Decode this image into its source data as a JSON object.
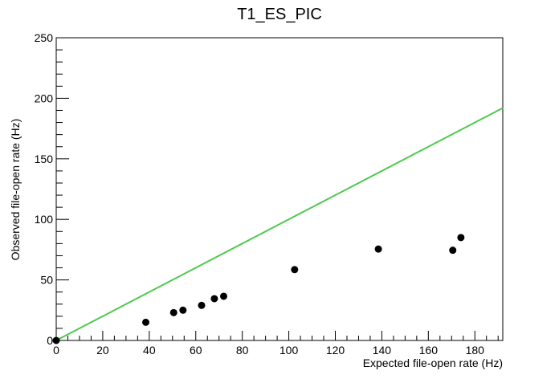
{
  "chart_data": {
    "type": "scatter",
    "title": "T1_ES_PIC",
    "xlabel": "Expected file-open rate (Hz)",
    "ylabel": "Observed file-open rate (Hz)",
    "xlim": [
      0,
      192
    ],
    "ylim": [
      0,
      250
    ],
    "x_ticks": [
      0,
      20,
      40,
      60,
      80,
      100,
      120,
      140,
      160,
      180
    ],
    "y_ticks": [
      0,
      50,
      100,
      150,
      200,
      250
    ],
    "grid": false,
    "series": [
      {
        "marker_color": "#000000",
        "points": [
          {
            "x": 0,
            "y": 0
          },
          {
            "x": 38.5,
            "y": 15
          },
          {
            "x": 50.5,
            "y": 23
          },
          {
            "x": 54.5,
            "y": 25
          },
          {
            "x": 62.5,
            "y": 29
          },
          {
            "x": 68,
            "y": 34.5
          },
          {
            "x": 72,
            "y": 36.5
          },
          {
            "x": 102.5,
            "y": 58.5
          },
          {
            "x": 138.5,
            "y": 75.5
          },
          {
            "x": 170.5,
            "y": 74.5
          },
          {
            "x": 174,
            "y": 85
          }
        ]
      }
    ],
    "reference_line": {
      "color": "#4fc94f",
      "points": [
        {
          "x": 0,
          "y": 0
        },
        {
          "x": 192,
          "y": 192
        }
      ]
    }
  }
}
